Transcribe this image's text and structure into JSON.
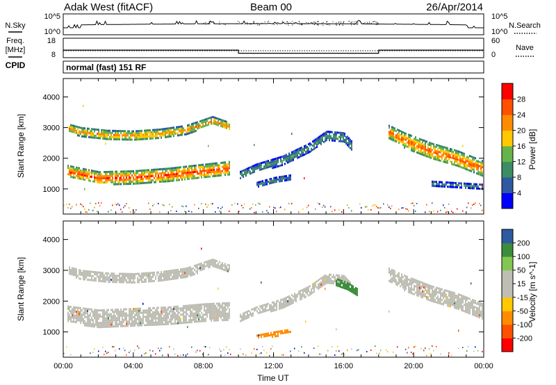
{
  "header": {
    "station": "Adak West (fitACF)",
    "beam": "Beam 00",
    "date": "26/Apr/2014"
  },
  "noise_panel": {
    "left_label": "N.Sky",
    "right_label": "N.Search",
    "left_ticks": [
      "10^5",
      "10^0"
    ],
    "right_ticks": [
      "10^5",
      "10^0"
    ]
  },
  "freq_panel": {
    "left_label_1": "Freq.",
    "left_label_2": "[MHz]",
    "right_label": "Nave",
    "left_ticks": [
      "18",
      "8"
    ],
    "right_ticks": [
      "60",
      "0"
    ],
    "freq_steps": [
      {
        "start_hour": 0,
        "end_hour": 10,
        "mhz": 11.9
      },
      {
        "start_hour": 10,
        "end_hour": 18,
        "mhz": 10.3
      },
      {
        "start_hour": 18,
        "end_hour": 24,
        "mhz": 11.9
      }
    ],
    "freq_range": [
      8,
      18
    ],
    "nave_range": [
      0,
      60
    ]
  },
  "cpid": {
    "label": "CPID",
    "text": "normal (fast) 151 RF"
  },
  "colors": {
    "power": [
      "#0000ff",
      "#2d5aa0",
      "#3c8c64",
      "#64b44b",
      "#ffc800",
      "#ff8c00",
      "#ff5000",
      "#ff0000"
    ],
    "velocity": [
      "#ff0000",
      "#ff5000",
      "#ff8c00",
      "#ffc800",
      "#bebeb4",
      "#bebeb4",
      "#82c850",
      "#3c8c3c",
      "#2d5aa0",
      "#0000b4"
    ]
  },
  "chart_data": [
    {
      "type": "heatmap",
      "title": "Power",
      "xlabel": "",
      "ylabel": "Slant Range [km]",
      "xlim": [
        0,
        24
      ],
      "ylim": [
        180,
        4600
      ],
      "x_ticks": [
        "00:00",
        "04:00",
        "08:00",
        "12:00",
        "16:00",
        "20:00",
        "00:00"
      ],
      "y_ticks": [
        1000,
        2000,
        3000,
        4000
      ],
      "colorbar": {
        "label": "Power [dB]",
        "ticks": [
          4,
          8,
          12,
          16,
          20,
          24,
          28
        ],
        "range": [
          0,
          32
        ]
      },
      "bands": [
        {
          "x": [
            0.2,
            2,
            4,
            6,
            8,
            9.5
          ],
          "r_center": [
            1600,
            1380,
            1400,
            1480,
            1600,
            1700
          ],
          "width": [
            380,
            400,
            420,
            430,
            450,
            430
          ],
          "peak_db": 28
        },
        {
          "x": [
            0.3,
            1,
            2.5,
            4,
            5.5,
            7,
            8.5,
            9.5
          ],
          "r_center": [
            3000,
            2880,
            2780,
            2760,
            2820,
            2950,
            3250,
            3050
          ],
          "width": [
            260,
            280,
            300,
            300,
            300,
            280,
            260,
            260
          ],
          "peak_db": 23
        },
        {
          "x": [
            10,
            11,
            12.5,
            14,
            15,
            16,
            16.5
          ],
          "r_center": [
            1450,
            1700,
            1950,
            2350,
            2750,
            2700,
            2400
          ],
          "width": [
            240,
            260,
            280,
            300,
            300,
            300,
            280
          ],
          "peak_db": 11
        },
        {
          "x": [
            11,
            12,
            13
          ],
          "r_center": [
            1150,
            1300,
            1400
          ],
          "width": [
            160,
            180,
            160
          ],
          "peak_db": 9
        },
        {
          "x": [
            18.5,
            19.5,
            21,
            22.5,
            23.9
          ],
          "r_center": [
            2900,
            2600,
            2250,
            2000,
            1700
          ],
          "width": [
            420,
            480,
            520,
            520,
            480
          ],
          "peak_db": 26
        },
        {
          "x": [
            21,
            22.5,
            23.9
          ],
          "r_center": [
            1200,
            1150,
            1100
          ],
          "width": [
            140,
            140,
            140
          ],
          "peak_db": 10
        }
      ]
    },
    {
      "type": "heatmap",
      "title": "Velocity",
      "xlabel": "Time UT",
      "ylabel": "Slant Range [km]",
      "xlim": [
        0,
        24
      ],
      "ylim": [
        180,
        4600
      ],
      "x_ticks": [
        "00:00",
        "04:00",
        "08:00",
        "12:00",
        "16:00",
        "20:00",
        "00:00"
      ],
      "y_ticks": [
        1000,
        2000,
        3000,
        4000
      ],
      "colorbar": {
        "label": "Velocity [m s^-1]",
        "ticks": [
          "200",
          "100",
          "50",
          "15",
          "-15",
          "-50",
          "-100",
          "-200"
        ],
        "range": [
          -250,
          250
        ]
      },
      "bands": [
        {
          "x": [
            0.2,
            2,
            4,
            6,
            8,
            9.5
          ],
          "r_center": [
            1600,
            1450,
            1500,
            1550,
            1650,
            1700
          ],
          "width": [
            520,
            560,
            560,
            560,
            560,
            540
          ],
          "vel": 0
        },
        {
          "x": [
            0.3,
            1,
            2.5,
            4,
            5.5,
            7,
            8.5,
            9.5
          ],
          "r_center": [
            3000,
            2880,
            2780,
            2760,
            2820,
            2950,
            3250,
            3050
          ],
          "width": [
            260,
            280,
            300,
            300,
            300,
            280,
            260,
            260
          ],
          "vel": 0
        },
        {
          "x": [
            10,
            11,
            12.5,
            14,
            15,
            16,
            16.5
          ],
          "r_center": [
            1450,
            1700,
            1950,
            2350,
            2750,
            2700,
            2400
          ],
          "width": [
            240,
            260,
            280,
            300,
            300,
            300,
            280
          ],
          "vel": 0
        },
        {
          "x": [
            11,
            12,
            13
          ],
          "r_center": [
            850,
            950,
            1050
          ],
          "width": [
            120,
            140,
            120
          ],
          "vel": -80
        },
        {
          "x": [
            18.5,
            19.5,
            21,
            22.5,
            23.9
          ],
          "r_center": [
            2900,
            2600,
            2250,
            2000,
            1700
          ],
          "width": [
            420,
            480,
            520,
            520,
            480
          ],
          "vel": 0
        },
        {
          "x": [
            15.5,
            16.2,
            16.8
          ],
          "r_center": [
            2650,
            2500,
            2300
          ],
          "width": [
            220,
            240,
            220
          ],
          "vel": 60
        }
      ]
    }
  ]
}
